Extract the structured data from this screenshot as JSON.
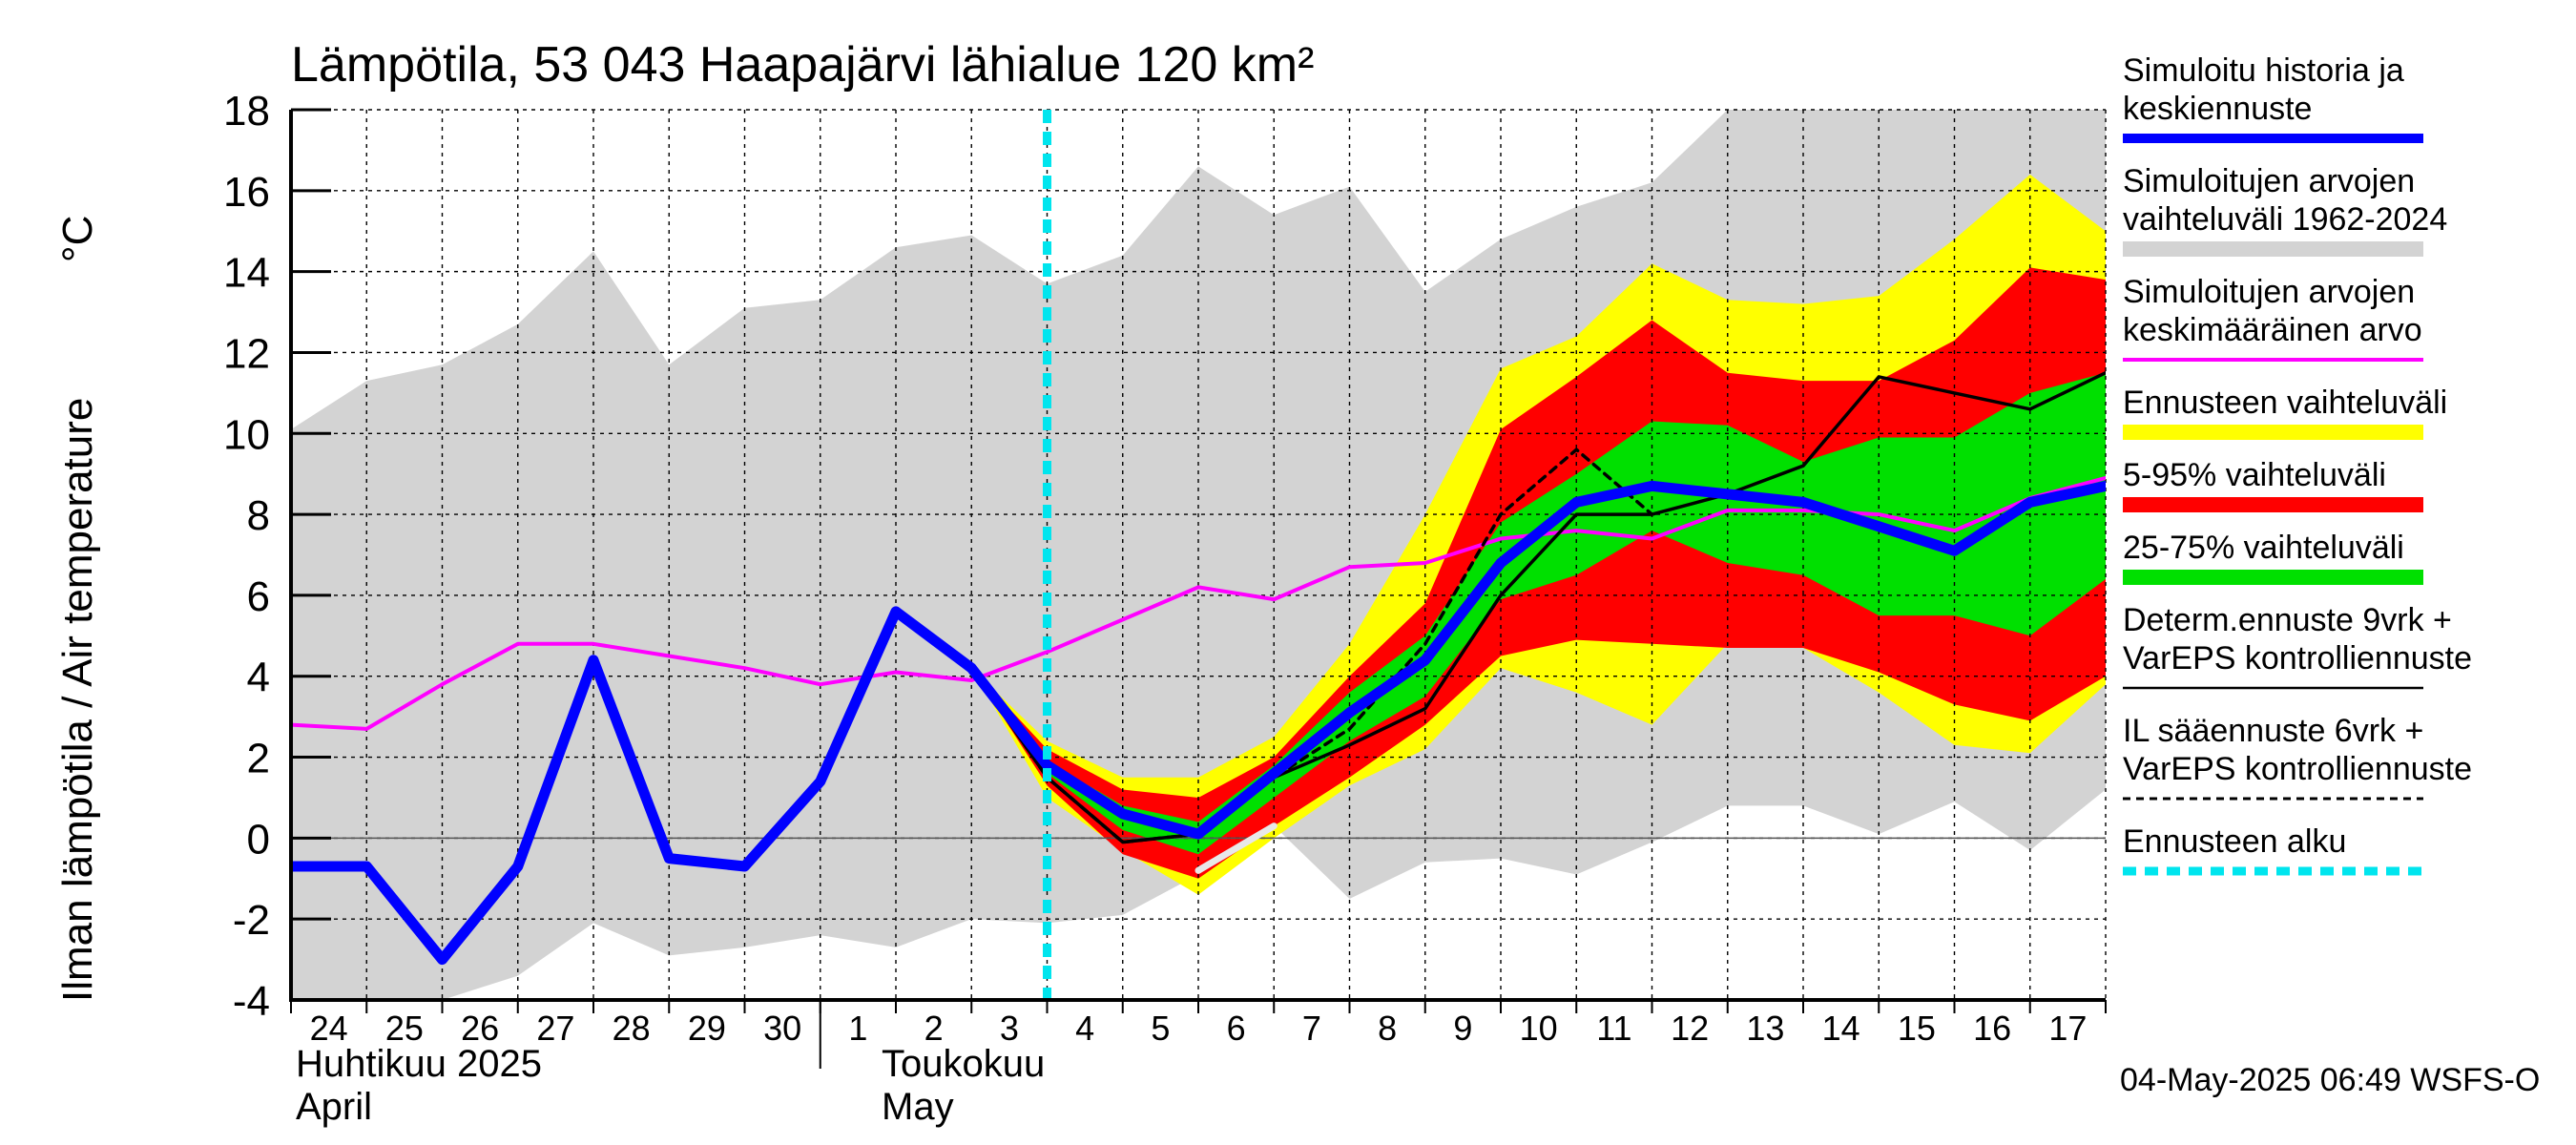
{
  "chart_data": {
    "type": "line",
    "title": "Lämpötila, 53 043 Haapajärvi lähialue 120 km²",
    "ylabel": "Ilman lämpötila / Air temperature",
    "yunit": "°C",
    "ylim": [
      -4,
      18
    ],
    "yticks": [
      "-4",
      "-2",
      "0",
      "2",
      "4",
      "6",
      "8",
      "10",
      "12",
      "14",
      "16",
      "18"
    ],
    "x_range_days": [
      "2025-04-24",
      "2025-05-18"
    ],
    "x_tick_labels": [
      "24",
      "25",
      "26",
      "27",
      "28",
      "29",
      "30",
      "1",
      "2",
      "3",
      "4",
      "5",
      "6",
      "7",
      "8",
      "9",
      "10",
      "11",
      "12",
      "13",
      "14",
      "15",
      "16",
      "17"
    ],
    "month_labels": [
      {
        "fi": "Huhtikuu  2025",
        "en": "April"
      },
      {
        "fi": "Toukokuu",
        "en": "May"
      }
    ],
    "grid": true,
    "forecast_start": "2025-05-04",
    "x_dates": [
      "2025-04-24",
      "2025-04-25",
      "2025-04-26",
      "2025-04-27",
      "2025-04-28",
      "2025-04-29",
      "2025-04-30",
      "2025-05-01",
      "2025-05-02",
      "2025-05-03",
      "2025-05-04",
      "2025-05-05",
      "2025-05-06",
      "2025-05-07",
      "2025-05-08",
      "2025-05-09",
      "2025-05-10",
      "2025-05-11",
      "2025-05-12",
      "2025-05-13",
      "2025-05-14",
      "2025-05-15",
      "2025-05-16",
      "2025-05-17",
      "2025-05-18"
    ],
    "bands": {
      "historical_range": {
        "upper": [
          10.1,
          11.3,
          11.7,
          12.7,
          14.5,
          11.7,
          13.1,
          13.3,
          14.6,
          14.9,
          13.7,
          14.4,
          16.6,
          15.4,
          16.1,
          13.5,
          14.8,
          15.6,
          16.2,
          18.0,
          18.0,
          18.0,
          18.0,
          18.0,
          18.0
        ],
        "lower": [
          -4.0,
          -4.0,
          -4.0,
          -3.4,
          -2.1,
          -2.9,
          -2.7,
          -2.4,
          -2.7,
          -2.0,
          -2.1,
          -1.9,
          -0.9,
          0.3,
          -1.5,
          -0.6,
          -0.5,
          -0.9,
          -0.1,
          0.8,
          0.8,
          0.1,
          0.9,
          -0.3,
          1.2
        ]
      },
      "ensemble_range": {
        "upper": [
          null,
          null,
          null,
          null,
          null,
          null,
          null,
          null,
          null,
          4.2,
          2.4,
          1.5,
          1.5,
          2.5,
          4.8,
          8.0,
          11.6,
          12.4,
          14.2,
          13.3,
          13.2,
          13.4,
          14.8,
          16.4,
          15.0
        ],
        "lower": [
          null,
          null,
          null,
          null,
          null,
          null,
          null,
          null,
          null,
          4.2,
          1.0,
          -0.3,
          -1.4,
          0.0,
          1.3,
          2.2,
          4.2,
          3.6,
          2.8,
          4.8,
          4.7,
          3.6,
          2.3,
          2.1,
          3.8
        ]
      },
      "p5_95": {
        "upper": [
          null,
          null,
          null,
          null,
          null,
          null,
          null,
          null,
          null,
          4.2,
          2.2,
          1.2,
          1.0,
          2.0,
          4.0,
          5.8,
          10.1,
          11.4,
          12.8,
          11.5,
          11.3,
          11.3,
          12.3,
          14.1,
          13.8
        ],
        "lower": [
          null,
          null,
          null,
          null,
          null,
          null,
          null,
          null,
          null,
          4.2,
          1.3,
          -0.4,
          -1.0,
          0.3,
          1.5,
          2.8,
          4.5,
          4.9,
          4.8,
          4.7,
          4.7,
          4.1,
          3.3,
          2.9,
          4.0
        ]
      },
      "p25_75": {
        "upper": [
          null,
          null,
          null,
          null,
          null,
          null,
          null,
          null,
          null,
          4.2,
          1.9,
          0.8,
          0.4,
          1.8,
          3.6,
          5.0,
          7.8,
          9.0,
          10.3,
          10.2,
          9.3,
          9.9,
          9.9,
          11.0,
          11.5
        ],
        "lower": [
          null,
          null,
          null,
          null,
          null,
          null,
          null,
          null,
          null,
          4.2,
          1.6,
          0.2,
          -0.4,
          1.0,
          2.4,
          3.5,
          5.9,
          6.5,
          7.6,
          6.8,
          6.5,
          5.5,
          5.5,
          5.0,
          6.4
        ]
      }
    },
    "series": [
      {
        "name": "Simuloitujen arvojen keskimääräinen arvo",
        "color": "#ff00ff",
        "values": [
          2.8,
          2.7,
          3.8,
          4.8,
          4.8,
          4.5,
          4.2,
          3.8,
          4.1,
          3.9,
          4.6,
          5.4,
          6.2,
          5.9,
          6.7,
          6.8,
          7.4,
          7.6,
          7.4,
          8.1,
          8.1,
          8.0,
          7.6,
          8.4,
          8.9
        ]
      },
      {
        "name": "Simuloitu historia ja keskiennuste",
        "color": "#0000ff",
        "values": [
          -0.7,
          -0.7,
          -3.0,
          -0.7,
          4.4,
          -0.5,
          -0.7,
          1.4,
          5.6,
          4.2,
          1.8,
          0.6,
          0.1,
          1.6,
          3.1,
          4.4,
          6.8,
          8.3,
          8.7,
          8.5,
          8.3,
          7.7,
          7.1,
          8.3,
          8.7
        ]
      },
      {
        "name": "Determ.ennuste 9vrk + VarEPS kontrolliennuste",
        "color": "#000000",
        "values": [
          null,
          null,
          null,
          null,
          null,
          null,
          null,
          null,
          5.6,
          4.2,
          1.5,
          -0.1,
          0.1,
          1.5,
          2.3,
          3.2,
          6.0,
          8.0,
          8.0,
          8.5,
          9.2,
          11.4,
          11.0,
          10.6,
          11.5
        ]
      },
      {
        "name": "IL sääennuste 6vrk + VarEPS kontrolliennuste",
        "color": "#000000",
        "dashed": true,
        "values": [
          null,
          null,
          null,
          null,
          null,
          null,
          null,
          null,
          5.6,
          4.2,
          1.5,
          -0.1,
          0.1,
          1.5,
          2.7,
          4.8,
          8.0,
          9.6,
          8.0,
          null,
          null,
          null,
          null,
          null,
          null
        ]
      },
      {
        "name": "white_segment",
        "color": "#e8e8e8",
        "values": [
          null,
          null,
          null,
          null,
          null,
          null,
          null,
          null,
          null,
          null,
          null,
          null,
          -0.8,
          0.3,
          null,
          null,
          null,
          null,
          null,
          null,
          null,
          null,
          null,
          null,
          null
        ]
      }
    ],
    "legend": [
      {
        "text": [
          "Simuloitu historia ja",
          "keskiennuste"
        ],
        "color": "#0000ff",
        "style": "thick"
      },
      {
        "text": [
          "Simuloitujen arvojen",
          "vaihteluväli 1962-2024"
        ],
        "color": "#d3d3d3",
        "style": "band"
      },
      {
        "text": [
          "Simuloitujen arvojen",
          "keskimääräinen arvo"
        ],
        "color": "#ff00ff",
        "style": "line"
      },
      {
        "text": [
          "Ennusteen vaihteluväli"
        ],
        "color": "#ffff00",
        "style": "band"
      },
      {
        "text": [
          "5-95% vaihteluväli"
        ],
        "color": "#ff0000",
        "style": "band"
      },
      {
        "text": [
          "25-75% vaihteluväli"
        ],
        "color": "#00e000",
        "style": "band"
      },
      {
        "text": [
          "Determ.ennuste 9vrk +",
          "VarEPS kontrolliennuste"
        ],
        "color": "#000000",
        "style": "thin"
      },
      {
        "text": [
          "IL sääennuste 6vrk  +",
          "  VarEPS kontrolliennuste"
        ],
        "color": "#000000",
        "style": "dashed"
      },
      {
        "text": [
          "Ennusteen alku"
        ],
        "color": "#00e5ee",
        "style": "cyan-dashed"
      }
    ],
    "timestamp": "04-May-2025 06:49 WSFS-O"
  }
}
